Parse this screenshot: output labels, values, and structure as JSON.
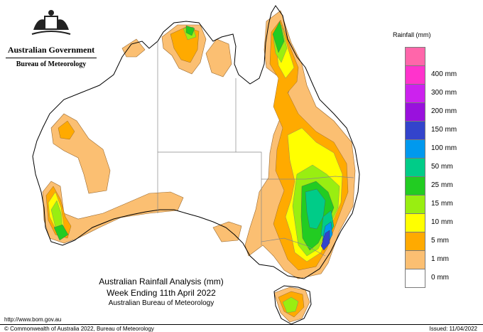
{
  "branding": {
    "government": "Australian Government",
    "bureau": "Bureau of Meteorology",
    "crest_icon": "coat-of-arms-icon"
  },
  "title": {
    "line1": "Australian Rainfall Analysis (mm)",
    "line2": "Week Ending 11th April 2022",
    "line3": "Australian Bureau of Meteorology"
  },
  "footer": {
    "url": "http://www.bom.gov.au",
    "copyright": "© Commonwealth of Australia 2022, Bureau of Meteorology",
    "issued": "Issued: 11/04/2022"
  },
  "legend": {
    "title": "Rainfall (mm)",
    "items": [
      {
        "label": "",
        "color": "#ff66aa"
      },
      {
        "label": "400 mm",
        "color": "#ff33cc"
      },
      {
        "label": "300 mm",
        "color": "#cc22ee"
      },
      {
        "label": "200 mm",
        "color": "#9911dd"
      },
      {
        "label": "150 mm",
        "color": "#3344cc"
      },
      {
        "label": "100 mm",
        "color": "#0099ee"
      },
      {
        "label": "50 mm",
        "color": "#00cc88"
      },
      {
        "label": "25 mm",
        "color": "#22cc22"
      },
      {
        "label": "15 mm",
        "color": "#99ee11"
      },
      {
        "label": "10 mm",
        "color": "#ffff00"
      },
      {
        "label": "5 mm",
        "color": "#ffaa00"
      },
      {
        "label": "1 mm",
        "color": "#fbbf72"
      },
      {
        "label": "0 mm",
        "color": "#ffffff"
      }
    ]
  },
  "colors": {
    "rain_1": "#fbbf72",
    "rain_5": "#ffaa00",
    "rain_10": "#ffff00",
    "rain_15": "#99ee11",
    "rain_25": "#22cc22",
    "rain_50": "#00cc88",
    "rain_100": "#0099ee",
    "rain_150": "#3344cc",
    "border": "#777777"
  }
}
